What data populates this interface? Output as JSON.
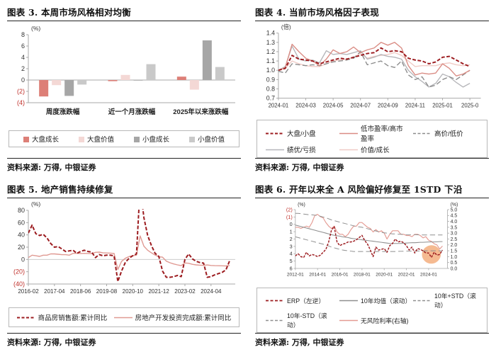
{
  "panels": [
    {
      "title": "图表 3. 本周市场风格相对均衡",
      "source": "资料来源: 万得, 中银证券"
    },
    {
      "title": "图表 4. 当前市场风格因子表现",
      "source": "资料来源: 万得, 中银证券"
    },
    {
      "title": "图表 5. 地产销售持续修复",
      "source": "资料来源: 万得, 中银证券"
    },
    {
      "title": "图表 6. 开年以来全 A 风险偏好修复至 1STD 下沿",
      "source": "资料来源: 万得, 中银证券"
    }
  ],
  "colors": {
    "dark_red": "#9c1b1f",
    "salmon": "#da8c84",
    "light_pink": "#f0cbc6",
    "bar_salmon": "#dd7f77",
    "bar_light_pink": "#f4d8d5",
    "gray_dark": "#a6a6a6",
    "gray_light": "#c9c9c9",
    "gray_line": "#8f8f8f",
    "gray_soft": "#b6b6ba",
    "axis": "#a9a9a9",
    "tick_text": "#333333",
    "negative_tick": "#c0312b",
    "highlight_orange": "#f4b285"
  },
  "chart_data": [
    {
      "type": "bar",
      "title": "本周市场风格相对均衡",
      "unit_left": "(%)",
      "ylim": [
        -4,
        8
      ],
      "yticks": [
        {
          "v": 8,
          "l": "8"
        },
        {
          "v": 6,
          "l": "6"
        },
        {
          "v": 4,
          "l": "4"
        },
        {
          "v": 2,
          "l": "2"
        },
        {
          "v": 0,
          "l": "0"
        },
        {
          "v": -2,
          "l": "(2)",
          "neg": true
        },
        {
          "v": -4,
          "l": "(4)",
          "neg": true
        }
      ],
      "categories": [
        "周度涨跌幅",
        "近一个月涨跌幅",
        "2025年以来涨跌幅"
      ],
      "series": [
        {
          "name": "大盘成长",
          "color": "#dd7f77",
          "values": [
            -2.9,
            -0.2,
            0.6
          ]
        },
        {
          "name": "大盘价值",
          "color": "#f4d8d5",
          "values": [
            -0.9,
            0.9,
            -1.7
          ]
        },
        {
          "name": "小盘成长",
          "color": "#a6a6a6",
          "values": [
            -2.8,
            -0.1,
            7.0
          ]
        },
        {
          "name": "小盘价值",
          "color": "#c9c9c9",
          "values": [
            -0.8,
            2.8,
            2.3
          ]
        }
      ]
    },
    {
      "type": "line",
      "title": "当前市场风格因子表现",
      "unit_left": "(倍)",
      "ylim": [
        0.7,
        1.4
      ],
      "yticks": [
        {
          "v": 1.4,
          "l": "1.4"
        },
        {
          "v": 1.3,
          "l": "1.3"
        },
        {
          "v": 1.2,
          "l": "1.2"
        },
        {
          "v": 1.1,
          "l": "1.1"
        },
        {
          "v": 1.0,
          "l": "1.0"
        },
        {
          "v": 0.9,
          "l": "0.9"
        },
        {
          "v": 0.8,
          "l": "0.8"
        },
        {
          "v": 0.7,
          "l": "0.7"
        }
      ],
      "xlim": [
        0,
        14.8
      ],
      "x_unit": "months since 2024-01",
      "xticks": [
        {
          "v": 0,
          "l": "2024-01"
        },
        {
          "v": 2,
          "l": "2024-03"
        },
        {
          "v": 4,
          "l": "2024-05"
        },
        {
          "v": 6,
          "l": "2024-07"
        },
        {
          "v": 8,
          "l": "2024-09"
        },
        {
          "v": 10,
          "l": "2024-11"
        },
        {
          "v": 12,
          "l": "2025-01"
        },
        {
          "v": 14,
          "l": "2025-0"
        }
      ],
      "x0": 0,
      "dx": 0.5,
      "series": [
        {
          "name": "大盘/小盘",
          "color": "#9c1b1f",
          "width": 2,
          "dash": "5 2.5",
          "y": [
            1.0,
            1.02,
            1.16,
            1.12,
            1.11,
            1.1,
            1.07,
            1.09,
            1.11,
            1.13,
            1.12,
            1.14,
            1.16,
            1.18,
            1.19,
            1.24,
            1.2,
            1.21,
            1.2,
            1.13,
            1.11,
            1.1,
            1.07,
            1.09,
            1.14,
            1.15,
            1.11,
            1.07,
            1.04
          ]
        },
        {
          "name": "低市盈率/高市盈率",
          "color": "#da8c84",
          "width": 1.4,
          "y": [
            1.0,
            1.03,
            1.28,
            1.2,
            1.13,
            1.1,
            1.05,
            1.12,
            1.22,
            1.18,
            1.2,
            1.25,
            1.19,
            1.22,
            1.24,
            1.3,
            1.27,
            1.3,
            1.24,
            1.05,
            0.95,
            0.97,
            0.96,
            0.97,
            1.07,
            1.02,
            0.94,
            0.96,
            1.0
          ]
        },
        {
          "name": "高价/低价",
          "color": "#8c8c8c",
          "width": 1.4,
          "dash": "7 3.5",
          "y": [
            0.99,
            0.97,
            1.07,
            1.06,
            1.05,
            1.06,
            1.05,
            1.07,
            1.09,
            1.1,
            1.11,
            1.13,
            1.2,
            1.06,
            1.08,
            1.1,
            1.05,
            1.03,
            1.1,
            0.95,
            0.9,
            0.93,
            0.82,
            0.84,
            0.9,
            0.93,
            0.9,
            0.95,
            1.0
          ]
        },
        {
          "name": "绩优/亏损",
          "color": "#b6b6ba",
          "width": 1.4,
          "y": [
            1.0,
            1.04,
            1.26,
            1.12,
            1.1,
            1.11,
            1.08,
            1.21,
            1.17,
            1.18,
            1.17,
            1.19,
            1.21,
            1.12,
            1.14,
            1.17,
            1.15,
            1.14,
            1.12,
            1.0,
            0.93,
            0.88,
            0.82,
            0.86,
            0.96,
            0.93,
            0.87,
            0.82,
            0.86
          ]
        },
        {
          "name": "价值/成长",
          "color": "#f0cbc6",
          "width": 1.4,
          "y": [
            1.0,
            1.02,
            1.1,
            1.07,
            1.05,
            1.04,
            1.04,
            1.07,
            1.1,
            1.11,
            1.12,
            1.14,
            1.18,
            1.13,
            1.15,
            1.16,
            1.17,
            1.19,
            1.16,
            1.1,
            1.04,
            1.05,
            1.05,
            1.05,
            1.07,
            1.08,
            1.06,
            1.05,
            1.06
          ]
        }
      ]
    },
    {
      "type": "line",
      "title": "地产销售持续修复",
      "unit_left": "(%)",
      "ylim": [
        -40,
        80
      ],
      "zero_line": true,
      "yticks": [
        {
          "v": 80,
          "l": "80"
        },
        {
          "v": 60,
          "l": "60"
        },
        {
          "v": 40,
          "l": "40"
        },
        {
          "v": 20,
          "l": "20"
        },
        {
          "v": 0,
          "l": "0"
        },
        {
          "v": -20,
          "l": "(20)",
          "neg": true
        },
        {
          "v": -40,
          "l": "(40)",
          "neg": true
        }
      ],
      "xlim": [
        0,
        111
      ],
      "x_unit": "months since 2016-02",
      "xticks": [
        {
          "v": 0,
          "l": "2016-02"
        },
        {
          "v": 14,
          "l": "2017-04"
        },
        {
          "v": 28,
          "l": "2018-06"
        },
        {
          "v": 42,
          "l": "2019-08"
        },
        {
          "v": 56,
          "l": "2020-10"
        },
        {
          "v": 70,
          "l": "2021-12"
        },
        {
          "v": 84,
          "l": "2023-02"
        },
        {
          "v": 98,
          "l": "2024-04"
        }
      ],
      "x0": 0,
      "dx": 2,
      "series": [
        {
          "name": "商品房销售额:累计同比",
          "color": "#9c1b1f",
          "width": 2,
          "dash": "5 2.5",
          "y": [
            43,
            56,
            42,
            39,
            41,
            35,
            26,
            20,
            21,
            17,
            13,
            14,
            15,
            10,
            13,
            15,
            13,
            12,
            3,
            8,
            6,
            7,
            7,
            6,
            -36,
            -19,
            -5,
            2,
            6,
            9,
            120,
            68,
            39,
            23,
            10,
            5,
            -19,
            -29,
            -29,
            -28,
            -26,
            -28,
            0,
            9,
            1,
            -3,
            -5,
            -6,
            -29,
            -28,
            -25,
            -23,
            -21,
            -17,
            -2
          ]
        },
        {
          "name": "房地产开发投资完成额:累计同比",
          "color": "#e09a93",
          "width": 1.4,
          "y": [
            3,
            7,
            6,
            5,
            7,
            7,
            9,
            9,
            8.5,
            7.8,
            7.8,
            7,
            10,
            10,
            9.7,
            10,
            9.7,
            9.5,
            11.6,
            11.9,
            10.9,
            10.5,
            10.3,
            9.9,
            -16.3,
            -3.3,
            1.9,
            4.6,
            6.3,
            7,
            38.3,
            21.6,
            15,
            10.9,
            7.2,
            4.4,
            3.7,
            -2.7,
            -5.4,
            -7.4,
            -8.8,
            -10,
            -5.7,
            -6.2,
            -7.9,
            -8.8,
            -9.3,
            -9.6,
            -9,
            -9.8,
            -10.1,
            -10.2,
            -10.3,
            -10.6,
            -9.8
          ]
        }
      ]
    },
    {
      "type": "line",
      "title": "开年以来全 A 风险偏好修复至 1STD 下沿",
      "unit_left": "(%)",
      "unit_right": "(%)",
      "ylim": [
        -2,
        6
      ],
      "invert_left": true,
      "yticks": [
        {
          "v": -2,
          "l": "(2)",
          "neg": true
        },
        {
          "v": -1,
          "l": "(1)",
          "neg": true
        },
        {
          "v": 0,
          "l": "0"
        },
        {
          "v": 1,
          "l": "1"
        },
        {
          "v": 2,
          "l": "2"
        },
        {
          "v": 3,
          "l": "3"
        },
        {
          "v": 4,
          "l": "4"
        },
        {
          "v": 5,
          "l": "5"
        },
        {
          "v": 6,
          "l": "6"
        }
      ],
      "ylim_right": [
        0,
        5
      ],
      "yticks_right": [
        {
          "v": 5,
          "l": "5.0"
        },
        {
          "v": 4.5,
          "l": "4.5"
        },
        {
          "v": 4,
          "l": "4.0"
        },
        {
          "v": 3.5,
          "l": "3.5"
        },
        {
          "v": 3,
          "l": "3.0"
        },
        {
          "v": 2.5,
          "l": "2.5"
        },
        {
          "v": 2,
          "l": "2.0"
        },
        {
          "v": 1.5,
          "l": "1.5"
        },
        {
          "v": 1,
          "l": "1.0"
        },
        {
          "v": 0.5,
          "l": "0.5"
        },
        {
          "v": 0,
          "l": "0.0"
        }
      ],
      "xlim": [
        2012,
        2025.7
      ],
      "x_unit": "year",
      "xticks": [
        {
          "v": 2012,
          "l": "2012-01"
        },
        {
          "v": 2014,
          "l": "2014-01"
        },
        {
          "v": 2016,
          "l": "2016-01"
        },
        {
          "v": 2018,
          "l": "2018-01"
        },
        {
          "v": 2020,
          "l": "2020-01"
        },
        {
          "v": 2022,
          "l": "2022-01"
        },
        {
          "v": 2024,
          "l": "2024-01"
        }
      ],
      "x0": 2012,
      "dx": 0.25,
      "annotations": [
        {
          "shape": "ellipse",
          "cx": 2024.25,
          "cy": 4.1,
          "rx": 0.85,
          "ry": 1.25,
          "rotate": -20,
          "color": "#f4b285",
          "opacity": 0.9
        }
      ],
      "series": [
        {
          "name": "ERP（左逆）",
          "color": "#9c1b1f",
          "width": 1.8,
          "dash": "4 2",
          "y": [
            4.3,
            4.0,
            4.4,
            4.5,
            3.8,
            4.3,
            4.1,
            4.2,
            4.4,
            4.2,
            3.8,
            3.4,
            2.4,
            0.8,
            0.3,
            2.4,
            2.9,
            2.7,
            2.6,
            2.4,
            2.4,
            2.3,
            2.1,
            1.8,
            1.5,
            2.2,
            2.7,
            3.5,
            4.4,
            3.1,
            3.5,
            3.4,
            3.3,
            3.8,
            2.9,
            2.6,
            2.0,
            2.4,
            2.3,
            2.5,
            2.9,
            3.5,
            3.1,
            3.9,
            3.3,
            3.4,
            3.6,
            3.9,
            3.9,
            4.5,
            3.8,
            4.2,
            4.1,
            3.5
          ]
        },
        {
          "name": "10年均值（滚动）",
          "color": "#8f8f8f",
          "width": 1.3,
          "y": [
            0.1,
            0.2,
            0.3,
            0.4,
            0.5,
            0.6,
            0.7,
            0.8,
            0.9,
            1.0,
            1.1,
            1.2,
            1.3,
            1.4,
            1.5,
            1.55,
            1.6,
            1.7,
            1.75,
            1.8,
            1.9,
            1.95,
            2.0,
            2.05,
            2.1,
            2.15,
            2.2,
            2.25,
            2.3,
            2.35,
            2.4,
            2.45,
            2.5,
            2.55,
            2.6,
            2.6,
            2.6,
            2.6,
            2.6,
            2.58,
            2.55,
            2.52,
            2.5,
            2.5,
            2.48,
            2.45,
            2.45,
            2.42,
            2.4,
            2.4,
            2.4,
            2.38,
            2.35,
            2.35
          ]
        },
        {
          "name": "10年+STD（滚动）",
          "color": "#8f8f8f",
          "width": 1.2,
          "dash": "9 5",
          "y": [
            1.7,
            1.8,
            1.9,
            2.0,
            2.1,
            2.2,
            2.3,
            2.4,
            2.5,
            2.6,
            2.7,
            2.8,
            2.95,
            3.1,
            3.2,
            3.3,
            3.4,
            3.5,
            3.55,
            3.6,
            3.65,
            3.7,
            3.7,
            3.7,
            3.7,
            3.7,
            3.7,
            3.7,
            3.7,
            3.7,
            3.7,
            3.7,
            3.7,
            3.7,
            3.7,
            3.7,
            3.7,
            3.68,
            3.67,
            3.66,
            3.65,
            3.65,
            3.64,
            3.63,
            3.62,
            3.62,
            3.61,
            3.6,
            3.6,
            3.6,
            3.6,
            3.6,
            3.6,
            3.6
          ]
        },
        {
          "name": "10年-STD（滚动）",
          "color": "#8f8f8f",
          "width": 1.2,
          "dash": "9 5",
          "y": [
            -1.5,
            -1.5,
            -1.45,
            -1.4,
            -1.35,
            -1.3,
            -1.3,
            -1.25,
            -1.2,
            -1.1,
            -1.0,
            -0.9,
            -0.75,
            -0.6,
            -0.5,
            -0.4,
            -0.3,
            -0.2,
            -0.1,
            0.0,
            0.1,
            0.2,
            0.3,
            0.35,
            0.4,
            0.5,
            0.6,
            0.7,
            0.8,
            0.9,
            1.0,
            1.1,
            1.15,
            1.2,
            1.25,
            1.3,
            1.3,
            1.35,
            1.35,
            1.4,
            1.4,
            1.4,
            1.4,
            1.4,
            1.42,
            1.43,
            1.44,
            1.45,
            1.45,
            1.45,
            1.45,
            1.45,
            1.45,
            1.45
          ]
        },
        {
          "name": "无风险利率(右轴)",
          "color": "#e49a92",
          "width": 1.4,
          "axis": "right",
          "y": [
            3.5,
            3.5,
            3.4,
            3.5,
            3.6,
            3.5,
            3.9,
            4.5,
            4.6,
            4.4,
            4.3,
            3.9,
            3.6,
            3.4,
            3.6,
            3.1,
            2.9,
            2.9,
            2.7,
            2.9,
            3.3,
            3.6,
            3.6,
            3.9,
            3.9,
            3.7,
            3.5,
            3.4,
            3.1,
            3.3,
            3.1,
            3.2,
            3.0,
            2.5,
            2.9,
            3.2,
            3.2,
            3.2,
            2.9,
            2.9,
            2.8,
            2.8,
            2.7,
            2.9,
            2.9,
            2.8,
            2.6,
            2.7,
            2.4,
            2.3,
            2.1,
            2.0,
            1.65,
            1.9
          ]
        }
      ]
    }
  ]
}
